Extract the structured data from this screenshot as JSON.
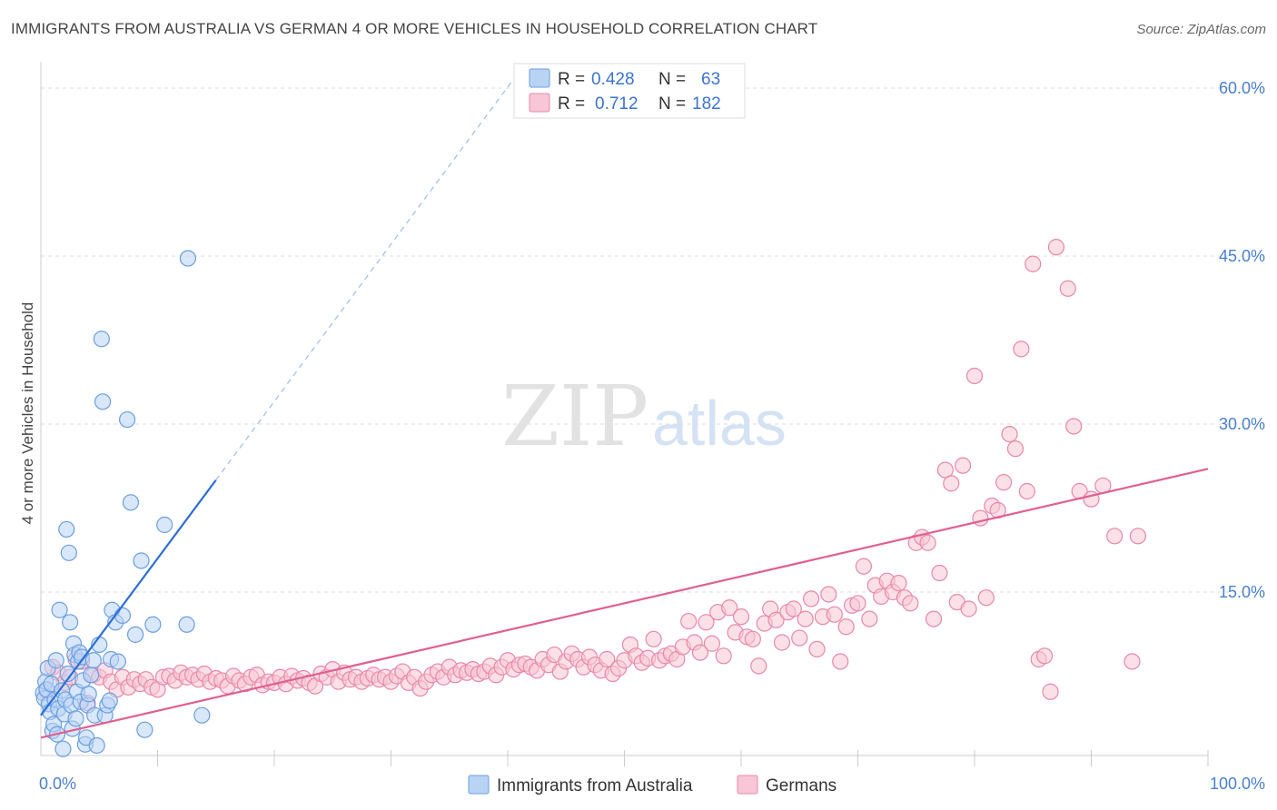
{
  "title": "IMMIGRANTS FROM AUSTRALIA VS GERMAN 4 OR MORE VEHICLES IN HOUSEHOLD CORRELATION CHART",
  "source": "Source: ZipAtlas.com",
  "watermark": {
    "zip": "ZIP",
    "atlas": "atlas"
  },
  "colors": {
    "blue": "#6a9fe0",
    "blue_fill": "#b9d3f5",
    "blue_line": "#2e6fd4",
    "pink": "#e888a8",
    "pink_fill": "#f8c6d6",
    "pink_line": "#e0608e",
    "tick": "#4a7fd0",
    "grid": "#dddddd"
  },
  "legend": {
    "rows": [
      {
        "r_label": "R =",
        "r_value": "0.428",
        "n_label": "N =",
        "n_value": "63"
      },
      {
        "r_label": "R =",
        "r_value": "0.712",
        "n_label": "N =",
        "n_value": "182"
      }
    ]
  },
  "chart_data": {
    "type": "scatter",
    "title": "IMMIGRANTS FROM AUSTRALIA VS GERMAN 4 OR MORE VEHICLES IN HOUSEHOLD CORRELATION CHART",
    "xlabel": "",
    "ylabel": "4 or more Vehicles in Household",
    "xlim": [
      0,
      100
    ],
    "ylim": [
      0,
      63
    ],
    "x_ticks": [
      "0.0%",
      "100.0%"
    ],
    "y_ticks": [
      {
        "value": 15,
        "label": "15.0%"
      },
      {
        "value": 30,
        "label": "30.0%"
      },
      {
        "value": 45,
        "label": "45.0%"
      },
      {
        "value": 60,
        "label": "60.0%"
      }
    ],
    "grid": true,
    "legend_position": "top-center",
    "series": [
      {
        "name": "Immigrants from Australia",
        "r": 0.428,
        "n": 63,
        "trend": {
          "x0": 0,
          "y0": 4.0,
          "x1": 15,
          "y1": 25.0,
          "dash_x1": 41,
          "dash_y1": 61.5
        },
        "points": [
          [
            0.2,
            6.0
          ],
          [
            0.3,
            5.5
          ],
          [
            0.4,
            7.0
          ],
          [
            0.5,
            6.3
          ],
          [
            0.6,
            8.2
          ],
          [
            0.7,
            5.0
          ],
          [
            0.8,
            4.3
          ],
          [
            0.9,
            6.8
          ],
          [
            1.0,
            2.6
          ],
          [
            1.1,
            3.2
          ],
          [
            1.2,
            5.4
          ],
          [
            1.3,
            8.9
          ],
          [
            1.4,
            2.3
          ],
          [
            1.5,
            4.6
          ],
          [
            1.6,
            13.4
          ],
          [
            1.8,
            6.2
          ],
          [
            1.9,
            1.0
          ],
          [
            2.0,
            4.1
          ],
          [
            2.1,
            5.4
          ],
          [
            2.2,
            20.6
          ],
          [
            2.3,
            7.7
          ],
          [
            2.4,
            18.5
          ],
          [
            2.5,
            12.3
          ],
          [
            2.6,
            4.9
          ],
          [
            2.7,
            2.8
          ],
          [
            2.8,
            10.4
          ],
          [
            2.9,
            9.4
          ],
          [
            3.0,
            3.7
          ],
          [
            3.1,
            6.1
          ],
          [
            3.2,
            8.8
          ],
          [
            3.3,
            9.6
          ],
          [
            3.4,
            5.2
          ],
          [
            3.5,
            9.2
          ],
          [
            3.6,
            7.1
          ],
          [
            3.8,
            1.4
          ],
          [
            3.9,
            2.0
          ],
          [
            4.0,
            4.9
          ],
          [
            4.1,
            5.9
          ],
          [
            4.3,
            7.6
          ],
          [
            4.5,
            8.9
          ],
          [
            4.6,
            4.0
          ],
          [
            4.8,
            1.3
          ],
          [
            5.0,
            10.3
          ],
          [
            5.2,
            37.6
          ],
          [
            5.3,
            32.0
          ],
          [
            5.5,
            4.0
          ],
          [
            5.7,
            4.9
          ],
          [
            5.9,
            5.3
          ],
          [
            6.0,
            9.0
          ],
          [
            6.1,
            13.4
          ],
          [
            6.4,
            12.3
          ],
          [
            6.6,
            8.8
          ],
          [
            7.0,
            12.9
          ],
          [
            7.4,
            30.4
          ],
          [
            7.7,
            23.0
          ],
          [
            8.1,
            11.2
          ],
          [
            8.6,
            17.8
          ],
          [
            8.9,
            2.7
          ],
          [
            9.6,
            12.1
          ],
          [
            10.6,
            21.0
          ],
          [
            12.5,
            12.1
          ],
          [
            12.6,
            44.8
          ],
          [
            13.8,
            4.0
          ]
        ]
      },
      {
        "name": "Germans",
        "r": 0.712,
        "n": 182,
        "trend": {
          "x0": 0,
          "y0": 2.0,
          "x1": 100,
          "y1": 26.0
        },
        "points": [
          [
            0.5,
            6.2
          ],
          [
            1.0,
            8.3
          ],
          [
            1.5,
            7.8
          ],
          [
            2.0,
            6.9
          ],
          [
            2.5,
            7.4
          ],
          [
            3.0,
            9.0
          ],
          [
            3.5,
            8.8
          ],
          [
            4.0,
            5.1
          ],
          [
            4.5,
            7.6
          ],
          [
            5.0,
            7.4
          ],
          [
            5.5,
            8.0
          ],
          [
            6.0,
            7.0
          ],
          [
            6.5,
            6.3
          ],
          [
            7.0,
            7.4
          ],
          [
            7.5,
            6.5
          ],
          [
            8.0,
            7.2
          ],
          [
            8.5,
            6.8
          ],
          [
            9.0,
            7.2
          ],
          [
            9.5,
            6.5
          ],
          [
            10.0,
            6.3
          ],
          [
            10.5,
            7.4
          ],
          [
            11.0,
            7.5
          ],
          [
            11.5,
            7.1
          ],
          [
            12.0,
            7.8
          ],
          [
            12.5,
            7.4
          ],
          [
            13.0,
            7.6
          ],
          [
            13.5,
            7.2
          ],
          [
            14.0,
            7.7
          ],
          [
            14.5,
            7.0
          ],
          [
            15.0,
            7.3
          ],
          [
            15.5,
            7.1
          ],
          [
            16.0,
            6.6
          ],
          [
            16.5,
            7.5
          ],
          [
            17.0,
            7.1
          ],
          [
            17.5,
            6.8
          ],
          [
            18.0,
            7.4
          ],
          [
            18.5,
            7.6
          ],
          [
            19.0,
            6.7
          ],
          [
            19.5,
            7.0
          ],
          [
            20.0,
            6.9
          ],
          [
            20.5,
            7.4
          ],
          [
            21.0,
            6.8
          ],
          [
            21.5,
            7.5
          ],
          [
            22.0,
            7.1
          ],
          [
            22.5,
            7.3
          ],
          [
            23.0,
            6.9
          ],
          [
            23.5,
            6.6
          ],
          [
            24.0,
            7.7
          ],
          [
            24.5,
            7.4
          ],
          [
            25.0,
            8.1
          ],
          [
            25.5,
            7.0
          ],
          [
            26.0,
            7.8
          ],
          [
            26.5,
            7.2
          ],
          [
            27.0,
            7.4
          ],
          [
            27.5,
            7.0
          ],
          [
            28.0,
            7.3
          ],
          [
            28.5,
            7.6
          ],
          [
            29.0,
            7.2
          ],
          [
            29.5,
            7.4
          ],
          [
            30.0,
            7.0
          ],
          [
            30.5,
            7.5
          ],
          [
            31.0,
            7.9
          ],
          [
            31.5,
            6.9
          ],
          [
            32.0,
            7.4
          ],
          [
            32.5,
            6.4
          ],
          [
            33.0,
            7.0
          ],
          [
            33.5,
            7.6
          ],
          [
            34.0,
            7.9
          ],
          [
            34.5,
            7.4
          ],
          [
            35.0,
            8.3
          ],
          [
            35.5,
            7.6
          ],
          [
            36.0,
            8.0
          ],
          [
            36.5,
            7.8
          ],
          [
            37.0,
            8.1
          ],
          [
            37.5,
            7.7
          ],
          [
            38.0,
            7.9
          ],
          [
            38.5,
            8.4
          ],
          [
            39.0,
            7.6
          ],
          [
            39.5,
            8.3
          ],
          [
            40.0,
            8.9
          ],
          [
            40.5,
            8.1
          ],
          [
            41.0,
            8.5
          ],
          [
            41.5,
            8.6
          ],
          [
            42.0,
            8.3
          ],
          [
            42.5,
            8.0
          ],
          [
            43.0,
            9.0
          ],
          [
            43.5,
            8.5
          ],
          [
            44.0,
            9.4
          ],
          [
            44.5,
            7.9
          ],
          [
            45.0,
            8.8
          ],
          [
            45.5,
            9.5
          ],
          [
            46.0,
            9.0
          ],
          [
            46.5,
            8.3
          ],
          [
            47.0,
            9.2
          ],
          [
            47.5,
            8.5
          ],
          [
            48.0,
            8.0
          ],
          [
            48.5,
            9.0
          ],
          [
            49.0,
            7.7
          ],
          [
            49.5,
            8.2
          ],
          [
            50.0,
            8.9
          ],
          [
            50.5,
            10.3
          ],
          [
            51.0,
            9.3
          ],
          [
            51.5,
            8.7
          ],
          [
            52.0,
            9.1
          ],
          [
            52.5,
            10.8
          ],
          [
            53.0,
            8.9
          ],
          [
            53.5,
            9.3
          ],
          [
            54.0,
            9.5
          ],
          [
            54.5,
            9.0
          ],
          [
            55.0,
            10.1
          ],
          [
            55.5,
            12.4
          ],
          [
            56.0,
            10.5
          ],
          [
            56.5,
            9.6
          ],
          [
            57.0,
            12.3
          ],
          [
            57.5,
            10.4
          ],
          [
            58.0,
            13.2
          ],
          [
            58.5,
            9.3
          ],
          [
            59.0,
            13.6
          ],
          [
            59.5,
            11.4
          ],
          [
            60.0,
            12.8
          ],
          [
            60.5,
            11.0
          ],
          [
            61.0,
            10.8
          ],
          [
            61.5,
            8.4
          ],
          [
            62.0,
            12.2
          ],
          [
            62.5,
            13.5
          ],
          [
            63.0,
            12.5
          ],
          [
            63.5,
            10.5
          ],
          [
            64.0,
            13.2
          ],
          [
            64.5,
            13.5
          ],
          [
            65.0,
            10.9
          ],
          [
            65.5,
            12.6
          ],
          [
            66.0,
            14.4
          ],
          [
            66.5,
            9.9
          ],
          [
            67.0,
            12.8
          ],
          [
            67.5,
            14.8
          ],
          [
            68.0,
            13.0
          ],
          [
            68.5,
            8.8
          ],
          [
            69.0,
            11.9
          ],
          [
            69.5,
            13.8
          ],
          [
            70.0,
            14.0
          ],
          [
            70.5,
            17.3
          ],
          [
            71.0,
            12.6
          ],
          [
            71.5,
            15.6
          ],
          [
            72.0,
            14.6
          ],
          [
            72.5,
            16.0
          ],
          [
            73.0,
            15.0
          ],
          [
            73.5,
            15.8
          ],
          [
            74.0,
            14.5
          ],
          [
            74.5,
            14.0
          ],
          [
            75.0,
            19.4
          ],
          [
            75.5,
            19.9
          ],
          [
            76.0,
            19.4
          ],
          [
            76.5,
            12.6
          ],
          [
            77.0,
            16.7
          ],
          [
            77.5,
            25.9
          ],
          [
            78.0,
            24.7
          ],
          [
            78.5,
            14.1
          ],
          [
            79.0,
            26.3
          ],
          [
            79.5,
            13.5
          ],
          [
            80.0,
            34.3
          ],
          [
            80.5,
            21.6
          ],
          [
            81.0,
            14.5
          ],
          [
            81.5,
            22.7
          ],
          [
            82.0,
            22.3
          ],
          [
            82.5,
            24.8
          ],
          [
            83.0,
            29.1
          ],
          [
            83.5,
            27.8
          ],
          [
            84.0,
            36.7
          ],
          [
            84.5,
            24.0
          ],
          [
            85.0,
            44.3
          ],
          [
            85.5,
            9.0
          ],
          [
            86.0,
            9.3
          ],
          [
            86.5,
            6.1
          ],
          [
            87.0,
            45.8
          ],
          [
            88.0,
            42.1
          ],
          [
            88.5,
            29.8
          ],
          [
            89.0,
            24.0
          ],
          [
            90.0,
            23.3
          ],
          [
            91.0,
            24.5
          ],
          [
            92.0,
            20.0
          ],
          [
            93.5,
            8.8
          ],
          [
            94.0,
            20.0
          ]
        ]
      }
    ]
  },
  "bottom_legend": [
    {
      "label": "Immigrants from Australia"
    },
    {
      "label": "Germans"
    }
  ]
}
